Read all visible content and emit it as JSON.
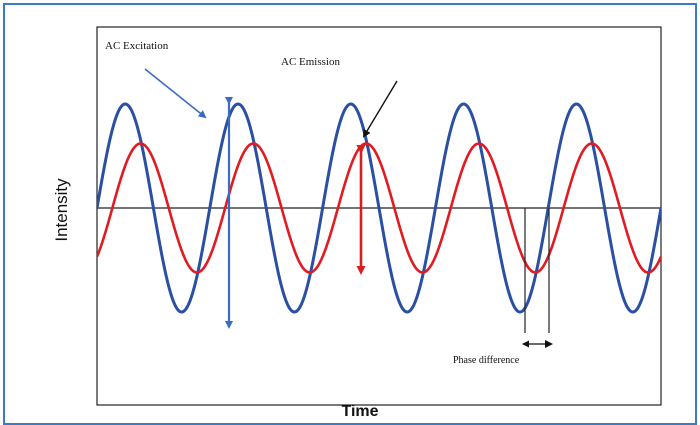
{
  "labels": {
    "excitation": "AC Excitation",
    "emission": "AC Emission",
    "phase": "Phase difference",
    "y_axis": "Intensity",
    "x_axis": "Time"
  },
  "colors": {
    "excitation": "#2b4fa3",
    "emission": "#e11b22",
    "axis": "#222222",
    "excitation_arrow": "#3b6bc4",
    "emission_arrow": "#d81e1e",
    "frame": "#3a7cc4"
  },
  "waves": {
    "excitation": {
      "cycles": 5,
      "amplitude": 1.0,
      "phase_deg": 0
    },
    "emission": {
      "cycles": 5,
      "amplitude": 0.62,
      "phase_deg": -49
    }
  }
}
